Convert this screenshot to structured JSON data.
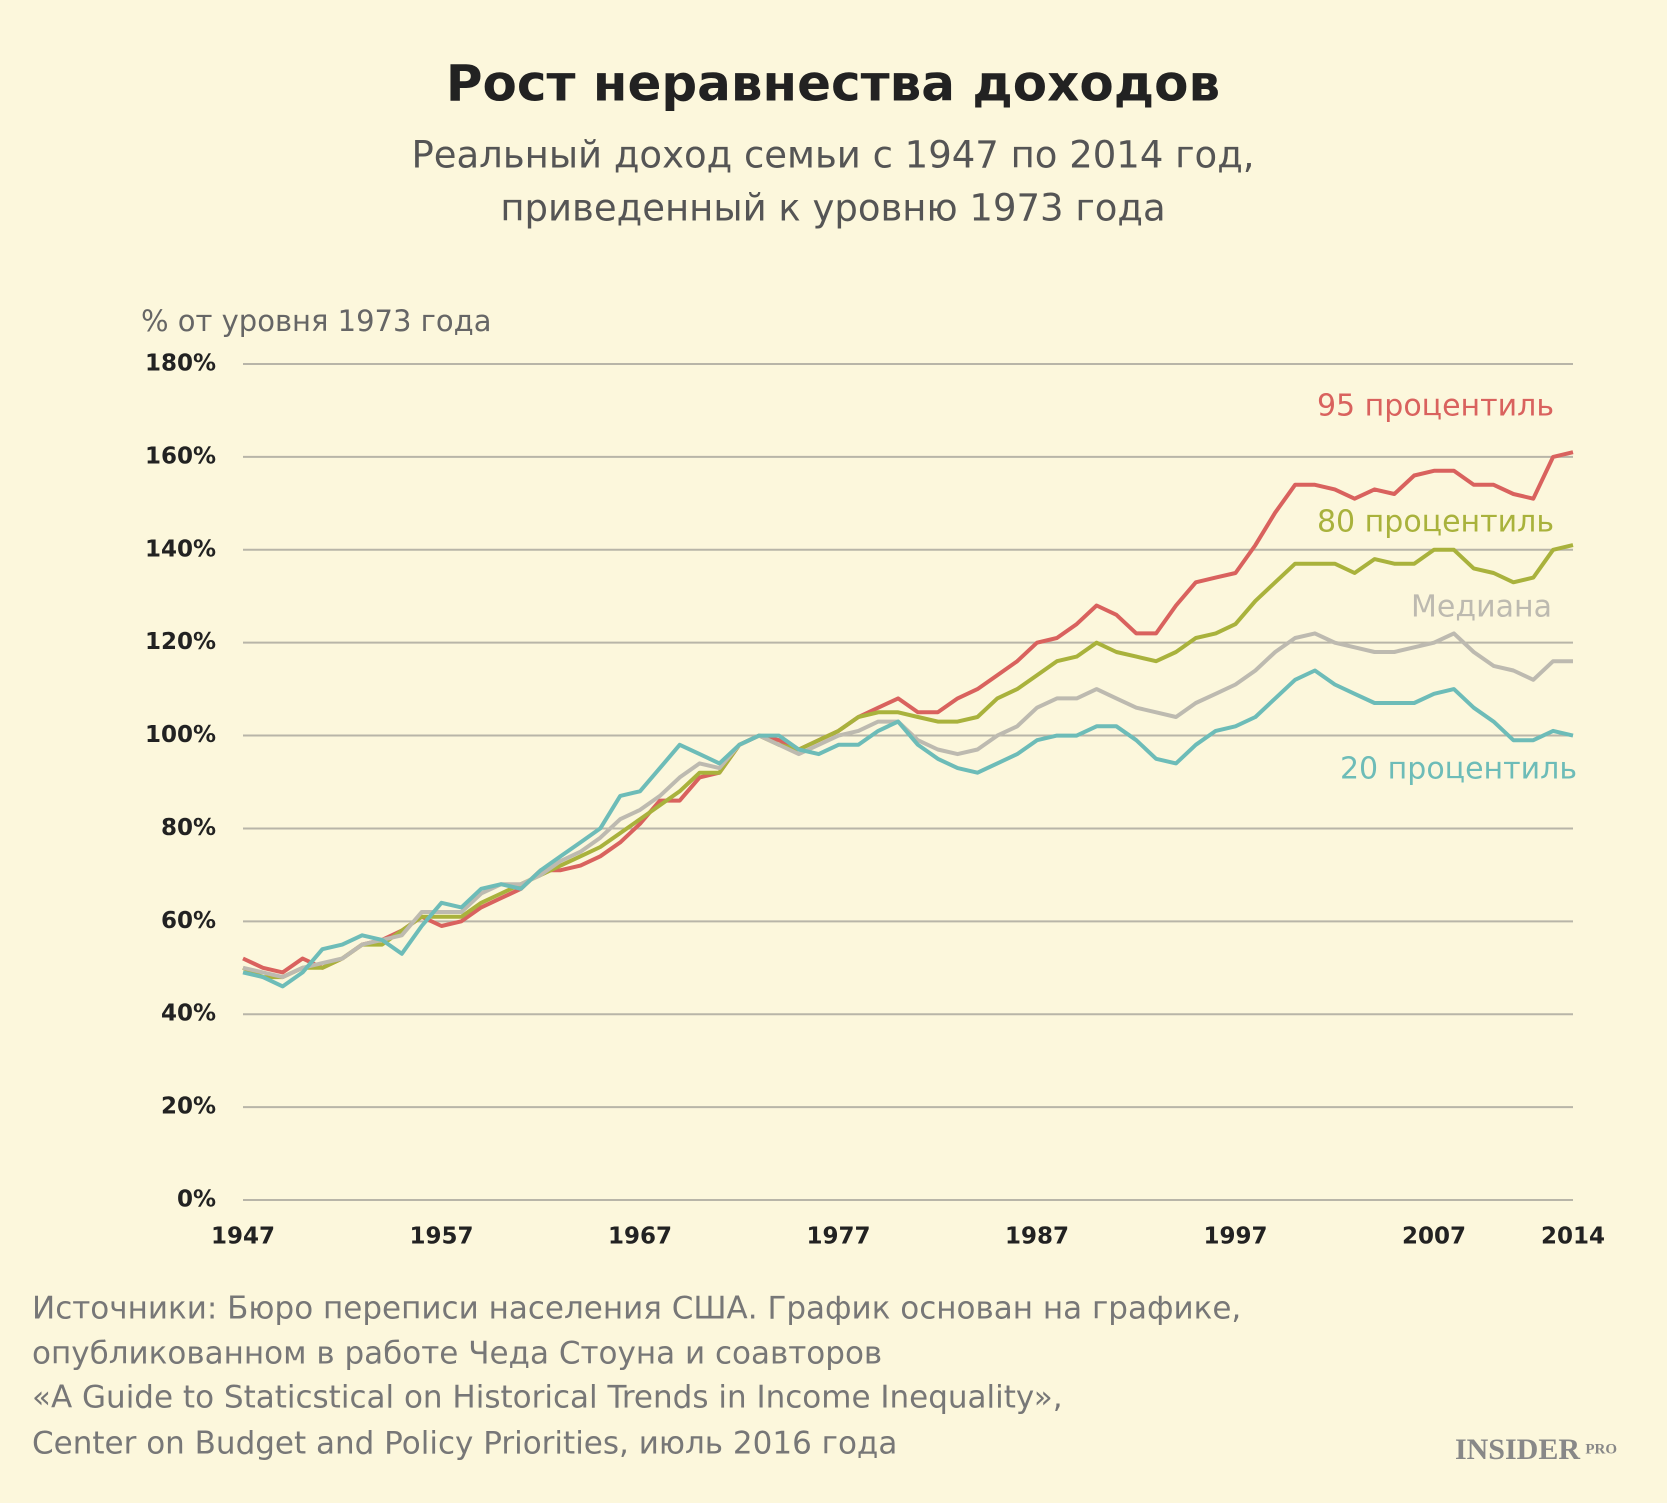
{
  "chart_data": {
    "type": "line",
    "title": "Рост неравнества доходов",
    "subtitle": [
      "Реальный доход семьи с 1947 по 2014 год,",
      "приведенный к уровню 1973 года"
    ],
    "y_label": "% от уровня 1973 года",
    "x": [
      1947,
      1948,
      1949,
      1950,
      1951,
      1952,
      1953,
      1954,
      1955,
      1956,
      1957,
      1958,
      1959,
      1960,
      1961,
      1962,
      1963,
      1964,
      1965,
      1966,
      1967,
      1968,
      1969,
      1970,
      1971,
      1972,
      1973,
      1974,
      1975,
      1976,
      1977,
      1978,
      1979,
      1980,
      1981,
      1982,
      1983,
      1984,
      1985,
      1986,
      1987,
      1988,
      1989,
      1990,
      1991,
      1992,
      1993,
      1994,
      1995,
      1996,
      1997,
      1998,
      1999,
      2000,
      2001,
      2002,
      2003,
      2004,
      2005,
      2006,
      2007,
      2008,
      2009,
      2010,
      2011,
      2012,
      2013,
      2014
    ],
    "xlim": [
      1947,
      2014
    ],
    "xticks": [
      1947,
      1957,
      1967,
      1977,
      1987,
      1997,
      2007,
      2014
    ],
    "ylim": [
      0,
      180
    ],
    "yticks": [
      {
        "value": 0,
        "label": "0%"
      },
      {
        "value": 20,
        "label": "20%"
      },
      {
        "value": 40,
        "label": "40%"
      },
      {
        "value": 60,
        "label": "60%"
      },
      {
        "value": 80,
        "label": "80%"
      },
      {
        "value": 100,
        "label": "100%"
      },
      {
        "value": 120,
        "label": "120%"
      },
      {
        "value": 140,
        "label": "140%"
      },
      {
        "value": 160,
        "label": "160%"
      },
      {
        "value": 180,
        "label": "180%"
      }
    ],
    "grid": true,
    "series": [
      {
        "name": "95 процентиль",
        "color": "#d9625e",
        "values": [
          52,
          50,
          49,
          52,
          50,
          52,
          55,
          56,
          58,
          61,
          59,
          60,
          63,
          65,
          67,
          71,
          71,
          72,
          74,
          77,
          81,
          86,
          86,
          91,
          92,
          98,
          100,
          99,
          97,
          99,
          101,
          104,
          106,
          108,
          105,
          105,
          108,
          110,
          113,
          116,
          120,
          121,
          124,
          128,
          126,
          122,
          122,
          128,
          133,
          134,
          135,
          141,
          148,
          154,
          154,
          153,
          151,
          153,
          152,
          156,
          157,
          157,
          154,
          154,
          152,
          151,
          160,
          161
        ]
      },
      {
        "name": "80 процентиль",
        "color": "#a9b23c",
        "values": [
          50,
          48,
          48,
          50,
          50,
          52,
          55,
          55,
          58,
          61,
          61,
          61,
          64,
          66,
          68,
          70,
          72,
          74,
          76,
          79,
          82,
          85,
          88,
          92,
          92,
          98,
          100,
          98,
          97,
          99,
          101,
          104,
          105,
          105,
          104,
          103,
          103,
          104,
          108,
          110,
          113,
          116,
          117,
          120,
          118,
          117,
          116,
          118,
          121,
          122,
          124,
          129,
          133,
          137,
          137,
          137,
          135,
          138,
          137,
          137,
          140,
          140,
          136,
          135,
          133,
          134,
          140,
          141
        ]
      },
      {
        "name": "Медиана",
        "color": "#bdbab0",
        "values": [
          50,
          49,
          48,
          50,
          51,
          52,
          55,
          56,
          57,
          62,
          62,
          62,
          66,
          68,
          68,
          70,
          73,
          75,
          78,
          82,
          84,
          87,
          91,
          94,
          93,
          98,
          100,
          98,
          96,
          98,
          100,
          101,
          103,
          103,
          99,
          97,
          96,
          97,
          100,
          102,
          106,
          108,
          108,
          110,
          108,
          106,
          105,
          104,
          107,
          109,
          111,
          114,
          118,
          121,
          122,
          120,
          119,
          118,
          118,
          119,
          120,
          122,
          118,
          115,
          114,
          112,
          116,
          116
        ]
      },
      {
        "name": "20 процентиль",
        "color": "#6dbcb8",
        "values": [
          49,
          48,
          46,
          49,
          54,
          55,
          57,
          56,
          53,
          59,
          64,
          63,
          67,
          68,
          67,
          71,
          74,
          77,
          80,
          87,
          88,
          93,
          98,
          96,
          94,
          98,
          100,
          100,
          97,
          96,
          98,
          98,
          101,
          103,
          98,
          95,
          93,
          92,
          94,
          96,
          99,
          100,
          100,
          102,
          102,
          99,
          95,
          94,
          98,
          101,
          102,
          104,
          108,
          112,
          114,
          111,
          109,
          107,
          107,
          107,
          109,
          110,
          106,
          103,
          99,
          99,
          101,
          100
        ]
      }
    ],
    "source": [
      "Источники: Бюро переписи населения США. График основан на графике,",
      "опубликованном в работе Чеда Стоуна и соавторов",
      "«A Guide to Staticstical on Historical Trends in Income Inequality»,",
      "Center on Budget and Policy Priorities, июль 2016 года"
    ],
    "logo": {
      "main": "INSIDER",
      "sub": "PRO"
    }
  }
}
